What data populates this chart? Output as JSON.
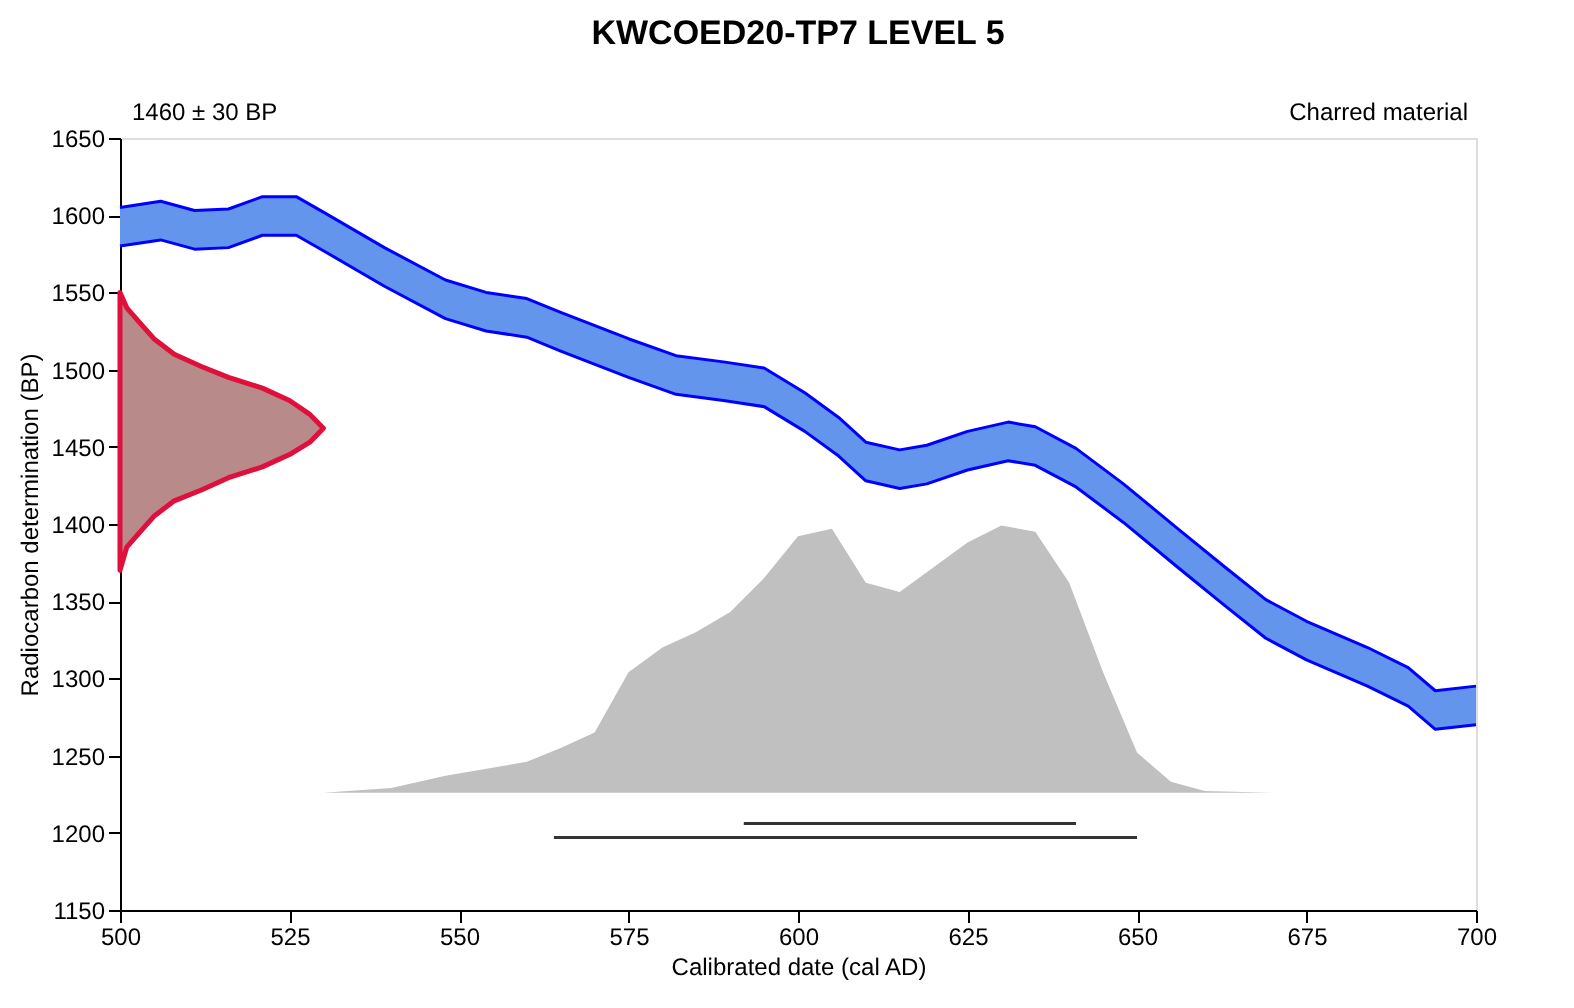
{
  "chart_data": {
    "type": "area",
    "title": "KWCOED20-TP7 LEVEL 5",
    "xlabel": "Calibrated date (cal AD)",
    "ylabel": "Radiocarbon determination (BP)",
    "annotations": [
      "1460 ± 30 BP",
      "Charred material"
    ],
    "xlim": [
      500,
      700
    ],
    "ylim": [
      1150,
      1650
    ],
    "xticks": [
      500,
      525,
      550,
      575,
      600,
      625,
      650,
      675,
      700
    ],
    "yticks": [
      1150,
      1200,
      1250,
      1300,
      1350,
      1400,
      1450,
      1500,
      1550,
      1600,
      1650
    ],
    "grid": false,
    "series": [
      {
        "color": "#6495ed",
        "x": [
          500,
          506,
          511,
          516,
          521,
          526,
          530,
          539,
          548,
          554,
          560,
          565,
          575,
          582,
          589,
          595,
          601,
          606,
          610,
          615,
          619,
          625,
          631,
          635,
          641,
          648,
          656,
          663,
          669,
          675,
          684,
          690,
          694,
          700
        ],
        "values": [
          1605,
          1609,
          1603,
          1604,
          1612,
          1612,
          1602,
          1579,
          1558,
          1550,
          1546,
          1537,
          1520,
          1509,
          1505,
          1501,
          1485,
          1469,
          1453,
          1448,
          1451,
          1460,
          1466,
          1463,
          1449,
          1426,
          1397,
          1372,
          1351,
          1337,
          1320,
          1307,
          1292,
          1295
        ]
      },
      {
        "type": "line",
        "color": "#0000ff",
        "x": [
          500,
          506,
          511,
          516,
          521,
          526,
          530,
          539,
          548,
          554,
          560,
          565,
          575,
          582,
          589,
          595,
          601,
          606,
          610,
          615,
          619,
          625,
          631,
          635,
          641,
          648,
          656,
          663,
          669,
          675,
          684,
          690,
          694,
          700
        ],
        "values": [
          1580,
          1584,
          1578,
          1579,
          1587,
          1587,
          1577,
          1554,
          1533,
          1525,
          1521,
          1512,
          1495,
          1484,
          1480,
          1476,
          1460,
          1444,
          1428,
          1423,
          1426,
          1435,
          1441,
          1438,
          1424,
          1401,
          1372,
          1347,
          1326,
          1312,
          1295,
          1282,
          1267,
          1270
        ]
      },
      {
        "color": "#b88a8a",
        "x": [
          500,
          501,
          503,
          505,
          508,
          512,
          516,
          521,
          525,
          528,
          530,
          528,
          525,
          521,
          516,
          512,
          508,
          505,
          503,
          501,
          500
        ],
        "values": [
          1550,
          1540,
          1530,
          1520,
          1510,
          1502,
          1495,
          1488,
          1480,
          1471,
          1462,
          1453,
          1445,
          1437,
          1430,
          1422,
          1415,
          1405,
          1395,
          1385,
          1370
        ]
      },
      {
        "color": "#c0c0c0",
        "x": [
          530,
          540,
          548,
          560,
          565,
          570,
          575,
          580,
          585,
          590,
          595,
          600,
          605,
          610,
          615,
          620,
          625,
          630,
          635,
          640,
          645,
          650,
          655,
          660,
          670
        ],
        "values": [
          1226,
          1229,
          1237,
          1246,
          1255,
          1265,
          1304,
          1320,
          1330,
          1343,
          1365,
          1392,
          1397,
          1362,
          1356,
          1372,
          1388,
          1399,
          1395,
          1362,
          1304,
          1252,
          1233,
          1227,
          1226
        ]
      },
      {
        "type": "line",
        "color": "#333333",
        "x": [
          592,
          641
        ],
        "values": [
          1206,
          1206
        ]
      },
      {
        "type": "line",
        "color": "#333333",
        "x": [
          564,
          650
        ],
        "values": [
          1197,
          1197
        ]
      }
    ]
  }
}
